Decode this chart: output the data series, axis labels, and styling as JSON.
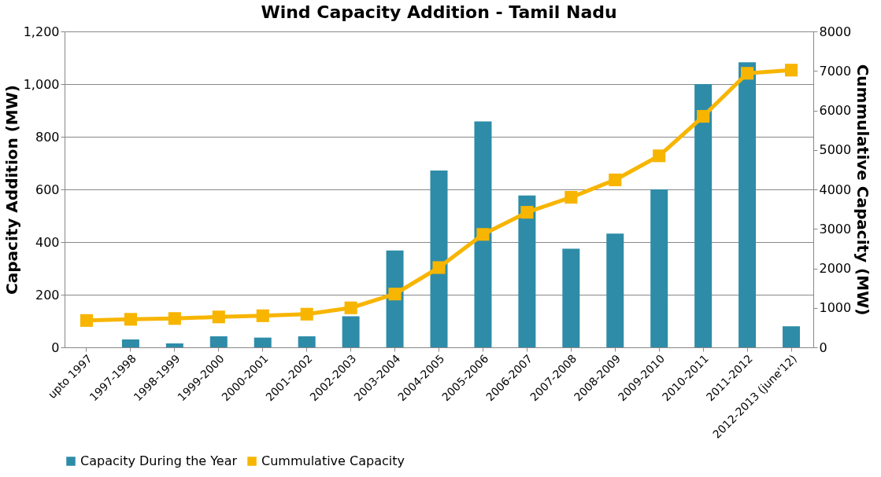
{
  "chart_data": {
    "type": "bar",
    "title": "Wind Capacity Addition - Tamil Nadu",
    "ylabel": "Capacity Addition (MW)",
    "y2label": "Cummulative Capacity (MW)",
    "categories": [
      "upto 1997",
      "1997-1998",
      "1998-1999",
      "1999-2000",
      "2000-2001",
      "2001-2002",
      "2002-2003",
      "2003-2004",
      "2004-2005",
      "2005-2006",
      "2006-2007",
      "2007-2008",
      "2008-2009",
      "2009-2010",
      "2010-2011",
      "2011-2012",
      "2012-2013 (june'12)"
    ],
    "series": [
      {
        "name": "Capacity During the Year",
        "color": "#2e8ca8",
        "values": [
          0,
          30,
          15,
          42,
          37,
          42,
          118,
          368,
          672,
          858,
          577,
          375,
          432,
          600,
          1000,
          1083,
          80
        ]
      },
      {
        "name": "Cummulative Capacity",
        "type": "line",
        "axis": "y2",
        "color": "#f7b500",
        "values": [
          680,
          710,
          730,
          770,
          800,
          840,
          1000,
          1350,
          2020,
          2860,
          3420,
          3800,
          4240,
          4850,
          5850,
          6940,
          7020
        ]
      }
    ],
    "ylim": [
      0,
      1200
    ],
    "yticks": [
      {
        "value": 0,
        "label": "0"
      },
      {
        "value": 200,
        "label": "200"
      },
      {
        "value": 400,
        "label": "400"
      },
      {
        "value": 600,
        "label": "600"
      },
      {
        "value": 800,
        "label": "800"
      },
      {
        "value": 1000,
        "label": "1,000"
      },
      {
        "value": 1200,
        "label": "1,200"
      }
    ],
    "y2lim": [
      0,
      8000
    ],
    "y2ticks": [
      0,
      1000,
      2000,
      3000,
      4000,
      5000,
      6000,
      7000,
      8000
    ],
    "grid": "y",
    "legend": "bottom",
    "marker": "square"
  }
}
